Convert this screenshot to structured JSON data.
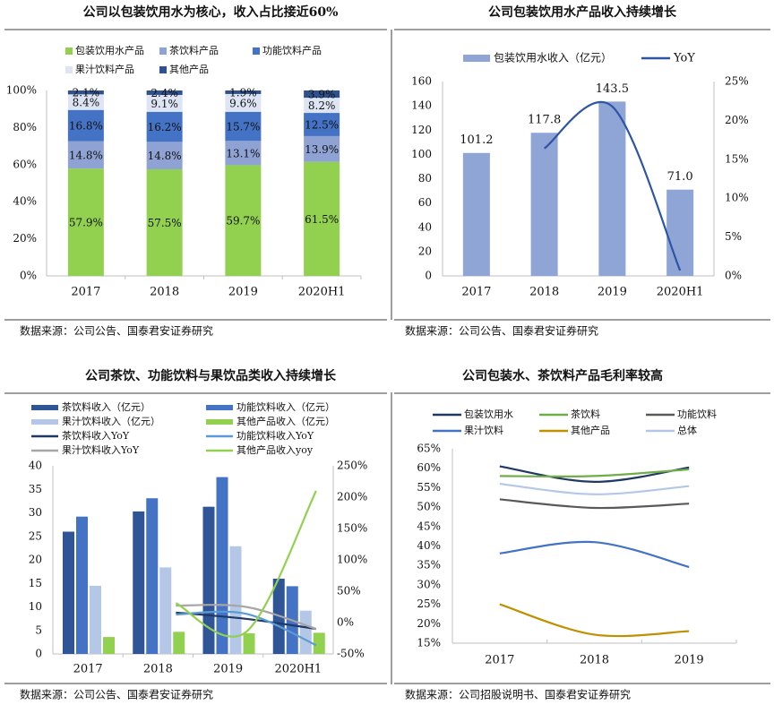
{
  "chart_data": [
    {
      "type": "bar",
      "stacked": true,
      "title": "公司以包装饮用水为核心，收入占比接近60%",
      "categories": [
        "2017",
        "2018",
        "2019",
        "2020H1"
      ],
      "series": [
        {
          "name": "包装饮用水产品",
          "color": "#92d050",
          "values": [
            57.9,
            57.5,
            59.7,
            61.5
          ],
          "labels": [
            "57.9%",
            "57.5%",
            "59.7%",
            "61.5%"
          ]
        },
        {
          "name": "茶饮料产品",
          "color": "#8fa2d4",
          "values": [
            14.8,
            14.8,
            13.1,
            13.9
          ],
          "labels": [
            "14.8%",
            "14.8%",
            "13.1%",
            "13.9%"
          ]
        },
        {
          "name": "功能饮料产品",
          "color": "#4472c4",
          "values": [
            16.8,
            16.2,
            15.7,
            12.5
          ],
          "labels": [
            "16.8%",
            "16.2%",
            "15.7%",
            "12.5%"
          ]
        },
        {
          "name": "果汁饮料产品",
          "color": "#dde4f3",
          "values": [
            8.4,
            9.1,
            9.6,
            8.2
          ],
          "labels": [
            "8.4%",
            "9.1%",
            "9.6%",
            "8.2%"
          ]
        },
        {
          "name": "其他产品",
          "color": "#2f528f",
          "values": [
            2.1,
            2.4,
            1.9,
            3.9
          ],
          "labels": [
            "2.1%",
            "2.4%",
            "1.9%",
            "3.9%"
          ]
        }
      ],
      "ylim": [
        0,
        100
      ],
      "yticks": [
        "0%",
        "20%",
        "40%",
        "60%",
        "80%",
        "100%"
      ],
      "legend": "top",
      "source": "数据来源：公司公告、国泰君安证券研究"
    },
    {
      "type": "bar",
      "title": "公司包装饮用水产品收入持续增长",
      "categories": [
        "2017",
        "2018",
        "2019",
        "2020H1"
      ],
      "bar_series": {
        "name": "包装饮用水收入（亿元）",
        "color": "#8ea5d6",
        "values": [
          101.2,
          117.8,
          143.5,
          71.0
        ],
        "labels": [
          "101.2",
          "117.8",
          "143.5",
          "71.0"
        ]
      },
      "line_series": {
        "name": "YoY",
        "color": "#2e54a6",
        "values": [
          null,
          16.4,
          21.8,
          0.7
        ]
      },
      "ylim": [
        0,
        160
      ],
      "yticks": [
        "0",
        "20",
        "40",
        "60",
        "80",
        "100",
        "120",
        "140",
        "160"
      ],
      "y2lim": [
        0,
        25
      ],
      "y2ticks": [
        "0%",
        "5%",
        "10%",
        "15%",
        "20%",
        "25%"
      ],
      "legend": "top",
      "source": "数据来源：公司公告、国泰君安证券研究"
    },
    {
      "type": "bar",
      "title": "公司茶饮、功能饮料与果饮品类收入持续增长",
      "categories": [
        "2017",
        "2018",
        "2019",
        "2020H1"
      ],
      "bar_series": [
        {
          "name": "茶饮料收入（亿元）",
          "color": "#2f5597",
          "values": [
            26.0,
            30.3,
            31.3,
            16.0
          ]
        },
        {
          "name": "功能饮料收入（亿元）",
          "color": "#4472c4",
          "values": [
            29.2,
            33.1,
            37.6,
            14.4
          ]
        },
        {
          "name": "果汁饮料收入（亿元）",
          "color": "#b4c7e7",
          "values": [
            14.5,
            18.4,
            22.9,
            9.2
          ]
        },
        {
          "name": "其他产品收入（亿元）",
          "color": "#92d050",
          "values": [
            3.6,
            4.7,
            4.4,
            4.5
          ]
        }
      ],
      "line_series": [
        {
          "name": "茶饮料收入YoY",
          "color": "#1f3864",
          "values": [
            null,
            16,
            6,
            -10
          ]
        },
        {
          "name": "功能饮料收入YoY",
          "color": "#5b9bd5",
          "values": [
            null,
            13,
            14,
            -36
          ]
        },
        {
          "name": "果汁饮料收入YoY",
          "color": "#a6a6a6",
          "values": [
            null,
            27,
            25,
            -10
          ]
        },
        {
          "name": "其他产品收入yoy",
          "color": "#92d050",
          "values": [
            null,
            31,
            -15,
            210
          ]
        }
      ],
      "ylim": [
        0,
        40
      ],
      "yticks": [
        "0",
        "5",
        "10",
        "15",
        "20",
        "25",
        "30",
        "35",
        "40"
      ],
      "y2lim": [
        -50,
        250
      ],
      "y2ticks": [
        "-50%",
        "0%",
        "50%",
        "100%",
        "150%",
        "200%",
        "250%"
      ],
      "legend": "top",
      "source": "数据来源：公司公告、国泰君安证券研究"
    },
    {
      "type": "line",
      "title": "公司包装水、茶饮料产品毛利率较高",
      "categories": [
        "2017",
        "2018",
        "2019"
      ],
      "series": [
        {
          "name": "包装饮用水",
          "color": "#1f3864",
          "values": [
            60.5,
            56.5,
            60.2
          ]
        },
        {
          "name": "茶饮料",
          "color": "#70ad47",
          "values": [
            58.0,
            58.0,
            59.7
          ]
        },
        {
          "name": "功能饮料",
          "color": "#595959",
          "values": [
            52.0,
            49.8,
            50.9
          ]
        },
        {
          "name": "果汁饮料",
          "color": "#4472c4",
          "values": [
            38.1,
            41.0,
            34.6
          ]
        },
        {
          "name": "其他产品",
          "color": "#bf9000",
          "values": [
            25.0,
            17.2,
            18.1
          ]
        },
        {
          "name": "总体",
          "color": "#b4c7e7",
          "values": [
            56.0,
            53.3,
            55.4
          ]
        }
      ],
      "ylim": [
        15,
        65
      ],
      "yticks": [
        "15%",
        "20%",
        "25%",
        "30%",
        "35%",
        "40%",
        "45%",
        "50%",
        "55%",
        "60%",
        "65%"
      ],
      "legend": "top",
      "source": "数据来源：公司招股说明书、国泰君安证券研究"
    }
  ]
}
